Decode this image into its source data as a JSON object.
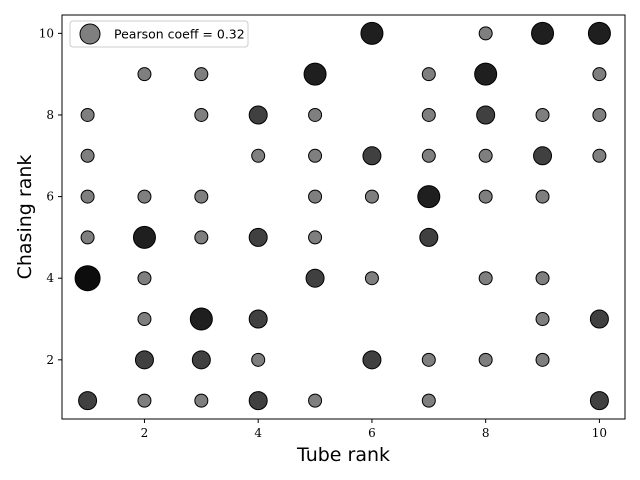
{
  "chart_data": {
    "type": "scatter",
    "xlabel": "Tube rank",
    "ylabel": "Chasing rank",
    "xlim": [
      0.55,
      10.45
    ],
    "ylim": [
      0.55,
      10.45
    ],
    "xticks": [
      2,
      4,
      6,
      8,
      10
    ],
    "yticks": [
      2,
      4,
      6,
      8,
      10
    ],
    "grid": false,
    "legend": {
      "label": "Pearson coeff = 0.32",
      "placement": "top-left"
    },
    "marker_color": "#000000",
    "size_levels": {
      "small": {
        "opacity": 0.5
      },
      "medium": {
        "opacity": 0.75
      },
      "large": {
        "opacity": 0.88
      },
      "xlarge": {
        "opacity": 0.95
      }
    },
    "points": [
      {
        "x": 1,
        "y": 1,
        "size": "medium"
      },
      {
        "x": 1,
        "y": 4,
        "size": "xlarge"
      },
      {
        "x": 1,
        "y": 5,
        "size": "small"
      },
      {
        "x": 1,
        "y": 6,
        "size": "small"
      },
      {
        "x": 1,
        "y": 7,
        "size": "small"
      },
      {
        "x": 1,
        "y": 8,
        "size": "small"
      },
      {
        "x": 2,
        "y": 1,
        "size": "small"
      },
      {
        "x": 2,
        "y": 2,
        "size": "medium"
      },
      {
        "x": 2,
        "y": 3,
        "size": "small"
      },
      {
        "x": 2,
        "y": 4,
        "size": "small"
      },
      {
        "x": 2,
        "y": 5,
        "size": "large"
      },
      {
        "x": 2,
        "y": 6,
        "size": "small"
      },
      {
        "x": 2,
        "y": 9,
        "size": "small"
      },
      {
        "x": 3,
        "y": 1,
        "size": "small"
      },
      {
        "x": 3,
        "y": 2,
        "size": "medium"
      },
      {
        "x": 3,
        "y": 3,
        "size": "large"
      },
      {
        "x": 3,
        "y": 5,
        "size": "small"
      },
      {
        "x": 3,
        "y": 6,
        "size": "small"
      },
      {
        "x": 3,
        "y": 8,
        "size": "small"
      },
      {
        "x": 3,
        "y": 9,
        "size": "small"
      },
      {
        "x": 4,
        "y": 1,
        "size": "medium"
      },
      {
        "x": 4,
        "y": 2,
        "size": "small"
      },
      {
        "x": 4,
        "y": 3,
        "size": "medium"
      },
      {
        "x": 4,
        "y": 5,
        "size": "medium"
      },
      {
        "x": 4,
        "y": 7,
        "size": "small"
      },
      {
        "x": 4,
        "y": 8,
        "size": "medium"
      },
      {
        "x": 5,
        "y": 1,
        "size": "small"
      },
      {
        "x": 5,
        "y": 4,
        "size": "medium"
      },
      {
        "x": 5,
        "y": 5,
        "size": "small"
      },
      {
        "x": 5,
        "y": 6,
        "size": "small"
      },
      {
        "x": 5,
        "y": 7,
        "size": "small"
      },
      {
        "x": 5,
        "y": 8,
        "size": "small"
      },
      {
        "x": 5,
        "y": 9,
        "size": "large"
      },
      {
        "x": 6,
        "y": 2,
        "size": "medium"
      },
      {
        "x": 6,
        "y": 4,
        "size": "small"
      },
      {
        "x": 6,
        "y": 6,
        "size": "small"
      },
      {
        "x": 6,
        "y": 7,
        "size": "medium"
      },
      {
        "x": 6,
        "y": 10,
        "size": "large"
      },
      {
        "x": 7,
        "y": 1,
        "size": "small"
      },
      {
        "x": 7,
        "y": 2,
        "size": "small"
      },
      {
        "x": 7,
        "y": 5,
        "size": "medium"
      },
      {
        "x": 7,
        "y": 6,
        "size": "large"
      },
      {
        "x": 7,
        "y": 7,
        "size": "small"
      },
      {
        "x": 7,
        "y": 8,
        "size": "small"
      },
      {
        "x": 7,
        "y": 9,
        "size": "small"
      },
      {
        "x": 8,
        "y": 2,
        "size": "small"
      },
      {
        "x": 8,
        "y": 4,
        "size": "small"
      },
      {
        "x": 8,
        "y": 6,
        "size": "small"
      },
      {
        "x": 8,
        "y": 7,
        "size": "small"
      },
      {
        "x": 8,
        "y": 8,
        "size": "medium"
      },
      {
        "x": 8,
        "y": 9,
        "size": "large"
      },
      {
        "x": 8,
        "y": 10,
        "size": "small"
      },
      {
        "x": 9,
        "y": 2,
        "size": "small"
      },
      {
        "x": 9,
        "y": 3,
        "size": "small"
      },
      {
        "x": 9,
        "y": 4,
        "size": "small"
      },
      {
        "x": 9,
        "y": 6,
        "size": "small"
      },
      {
        "x": 9,
        "y": 7,
        "size": "medium"
      },
      {
        "x": 9,
        "y": 8,
        "size": "small"
      },
      {
        "x": 9,
        "y": 10,
        "size": "large"
      },
      {
        "x": 10,
        "y": 1,
        "size": "medium"
      },
      {
        "x": 10,
        "y": 3,
        "size": "medium"
      },
      {
        "x": 10,
        "y": 7,
        "size": "small"
      },
      {
        "x": 10,
        "y": 8,
        "size": "small"
      },
      {
        "x": 10,
        "y": 9,
        "size": "small"
      },
      {
        "x": 10,
        "y": 10,
        "size": "large"
      }
    ]
  }
}
